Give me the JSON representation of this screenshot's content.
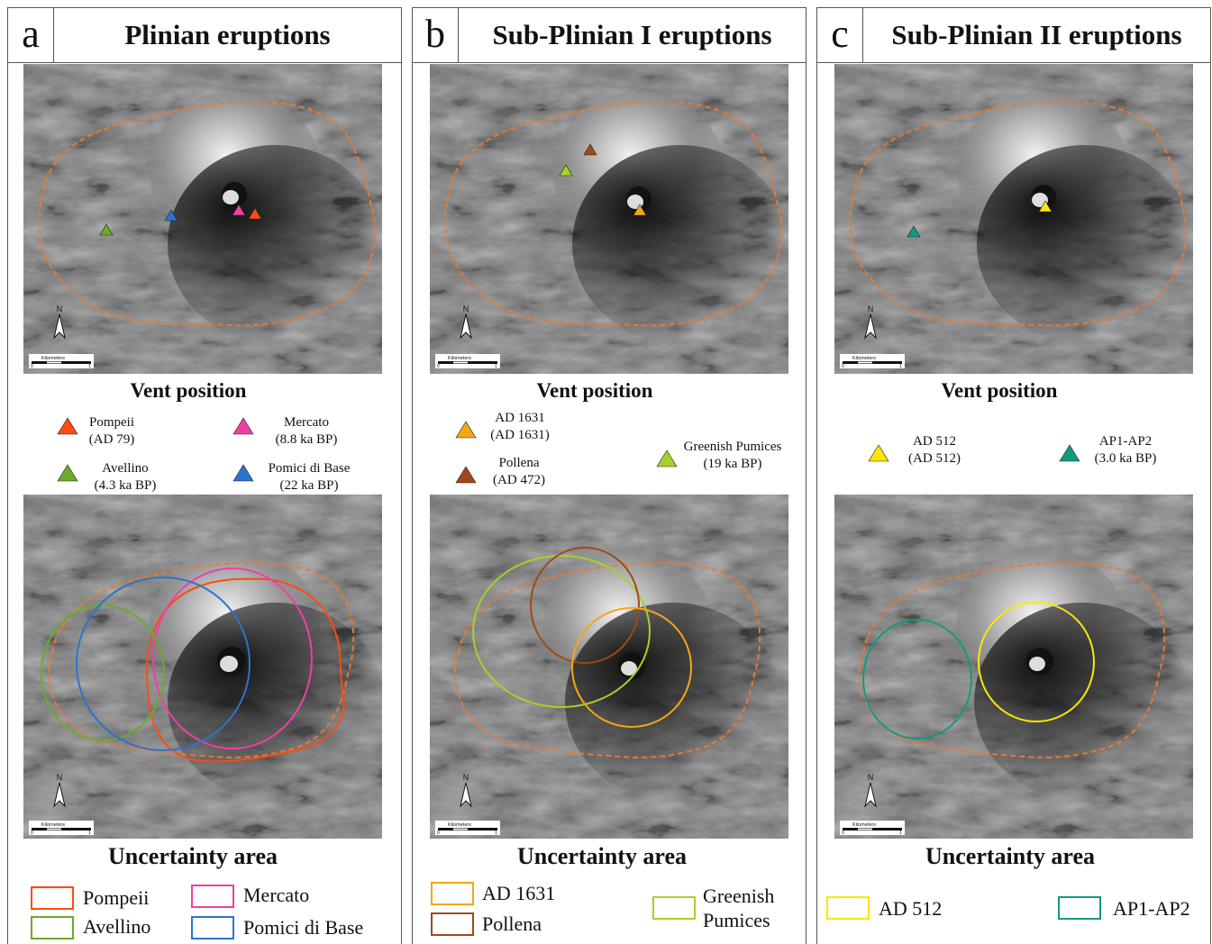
{
  "colors": {
    "pompeii": "#ff4a12",
    "mercato": "#ef3fa5",
    "avellino": "#6aab2b",
    "pomici": "#2c74c9",
    "ad1631": "#f6a615",
    "pollena": "#a04818",
    "greenish": "#a6d128",
    "ad512": "#ffe600",
    "ap1ap2": "#139a7e",
    "caldera": "#e87a34"
  },
  "map_common": {
    "north": "N",
    "scale_unit": "Kilometers",
    "scale_zero": "0",
    "scale_one": "1"
  },
  "panels": [
    {
      "letter": "a",
      "title": "Plinian eruptions",
      "vent_title": "Vent position",
      "vents": [
        {
          "name": "Pompeii",
          "age": "(AD 79)",
          "color": "#ff4a12"
        },
        {
          "name": "Mercato",
          "age": "(8.8 ka BP)",
          "color": "#ef3fa5"
        },
        {
          "name": "Avellino",
          "age": "(4.3 ka BP)",
          "color": "#6aab2b"
        },
        {
          "name": "Pomici di Base",
          "age": "(22 ka BP)",
          "color": "#2c74c9"
        }
      ],
      "uncert_title": "Uncertainty area",
      "areas": [
        {
          "name": "Pompeii",
          "color": "#ff4a12"
        },
        {
          "name": "Mercato",
          "color": "#ef3fa5"
        },
        {
          "name": "Avellino",
          "color": "#6aab2b"
        },
        {
          "name": "Pomici di Base",
          "color": "#2c74c9"
        }
      ]
    },
    {
      "letter": "b",
      "title": "Sub-Plinian I eruptions",
      "vent_title": "Vent position",
      "vents": [
        {
          "name": "AD 1631",
          "age": "(AD 1631)",
          "color": "#f6a615"
        },
        {
          "name": "Pollena",
          "age": "(AD 472)",
          "color": "#a04818"
        },
        {
          "name": "Greenish Pumices",
          "age": "(19 ka BP)",
          "color": "#a6d128"
        }
      ],
      "uncert_title": "Uncertainty area",
      "areas": [
        {
          "name": "AD 1631",
          "color": "#f6a615"
        },
        {
          "name": "Pollena",
          "color": "#a04818"
        },
        {
          "name": "Greenish",
          "name2": "Pumices",
          "color": "#a6d128"
        }
      ]
    },
    {
      "letter": "c",
      "title": "Sub-Plinian II eruptions",
      "vent_title": "Vent position",
      "vents": [
        {
          "name": "AD 512",
          "age": "(AD 512)",
          "color": "#ffe600"
        },
        {
          "name": "AP1-AP2",
          "age": "(3.0 ka BP)",
          "color": "#139a7e"
        }
      ],
      "uncert_title": "Uncertainty area",
      "areas": [
        {
          "name": "AD 512",
          "color": "#ffe600"
        },
        {
          "name": "AP1-AP2",
          "color": "#139a7e"
        }
      ]
    }
  ]
}
